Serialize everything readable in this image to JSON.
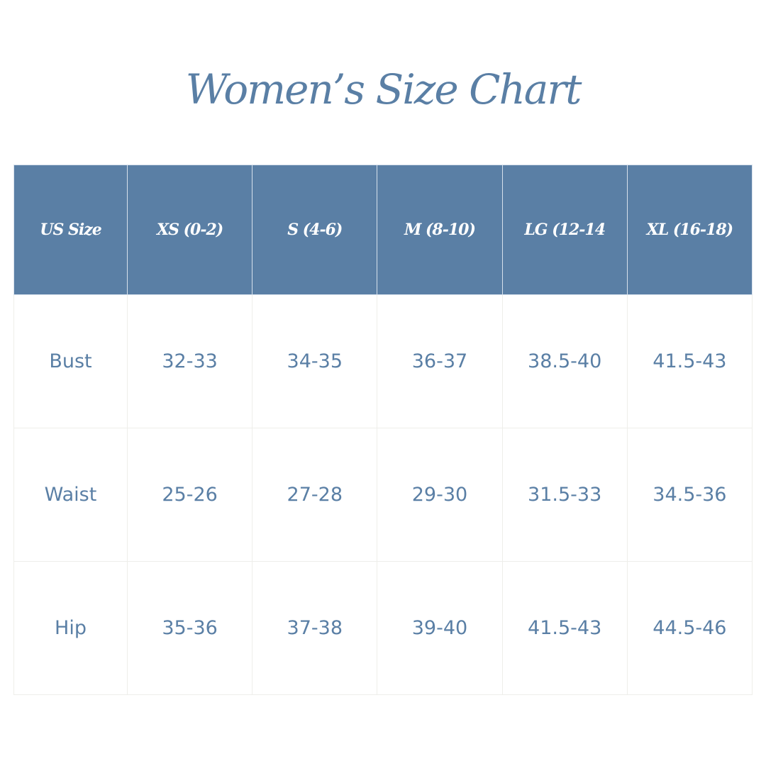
{
  "header": {
    "title": "Women’s Size Chart"
  },
  "table": {
    "header": [
      "US Size",
      "XS (0-2)",
      "S (4-6)",
      "M (8-10)",
      "LG (12-14",
      "XL (16-18)"
    ],
    "rows": [
      [
        "Bust",
        "32-33",
        "34-35",
        "36-37",
        "38.5-40",
        "41.5-43"
      ],
      [
        "Waist",
        "25-26",
        "27-28",
        "29-30",
        "31.5-33",
        "34.5-36"
      ],
      [
        "Hip",
        "35-36",
        "37-38",
        "39-40",
        "41.5-43",
        "44.5-46"
      ]
    ]
  }
}
